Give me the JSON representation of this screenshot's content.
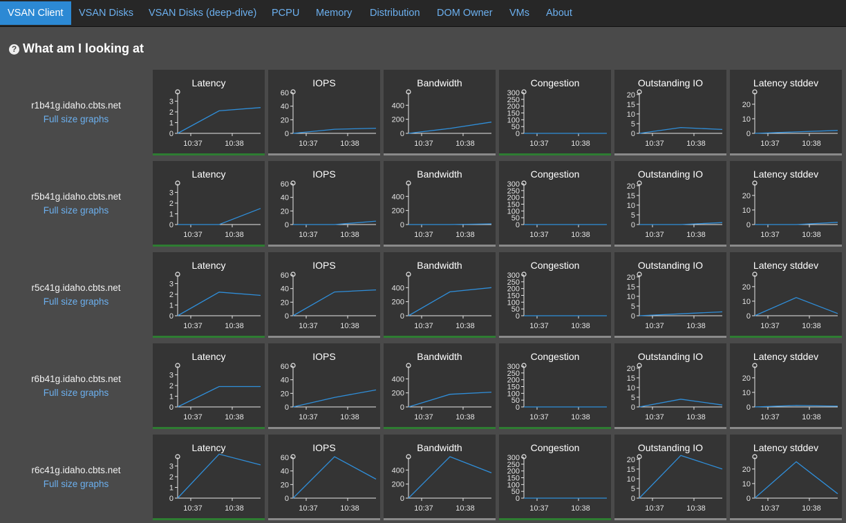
{
  "nav": {
    "tabs": [
      {
        "label": "VSAN Client",
        "active": true
      },
      {
        "label": "VSAN Disks"
      },
      {
        "label": "VSAN Disks (deep-dive)"
      },
      {
        "label": "PCPU"
      },
      {
        "label": "Memory"
      },
      {
        "label": "Distribution"
      },
      {
        "label": "DOM Owner"
      },
      {
        "label": "VMs"
      },
      {
        "label": "About"
      }
    ]
  },
  "page": {
    "help_glyph": "?",
    "title": "What am I looking at",
    "full_size_link": "Full size graphs"
  },
  "colors": {
    "line": "#2f8fdb",
    "bar_green": "#2e7d32",
    "bar_gray": "#8a8a8a"
  },
  "x_ticks": [
    "10:37",
    "10:38"
  ],
  "chart_data": {
    "type": "line",
    "x": [
      0,
      1,
      2
    ],
    "metrics": [
      {
        "name": "Latency",
        "yticks": [
          0,
          1,
          2,
          3
        ],
        "ylim": [
          0,
          3.8
        ]
      },
      {
        "name": "IOPS",
        "yticks": [
          0,
          20,
          40,
          60
        ],
        "ylim": [
          0,
          60
        ]
      },
      {
        "name": "Bandwidth",
        "yticks": [
          0,
          200,
          400
        ],
        "ylim": [
          0,
          580
        ]
      },
      {
        "name": "Congestion",
        "yticks": [
          0,
          50,
          100,
          150,
          200,
          250,
          300
        ],
        "ylim": [
          0,
          300
        ]
      },
      {
        "name": "Outstanding IO",
        "yticks": [
          0,
          5,
          10,
          15,
          20
        ],
        "ylim": [
          0,
          21
        ]
      },
      {
        "name": "Latency stddev",
        "yticks": [
          0,
          10,
          20
        ],
        "ylim": [
          0,
          28
        ]
      }
    ],
    "hosts": [
      {
        "name": "r1b41g.idaho.cbts.net",
        "status": [
          "green",
          "gray",
          "gray",
          "green",
          "gray",
          "gray"
        ],
        "series": [
          [
            0,
            2.1,
            2.4
          ],
          [
            0,
            6,
            7.5
          ],
          [
            0,
            70,
            160
          ],
          [
            0,
            0,
            0
          ],
          [
            0,
            3,
            2
          ],
          [
            0,
            1,
            2
          ]
        ]
      },
      {
        "name": "r5b41g.idaho.cbts.net",
        "status": [
          "green",
          "gray",
          "gray",
          "gray",
          "gray",
          "gray"
        ],
        "series": [
          [
            0,
            0,
            1.5
          ],
          [
            0,
            0,
            5
          ],
          [
            0,
            0,
            10
          ],
          [
            0,
            0,
            0
          ],
          [
            0,
            0,
            1
          ],
          [
            0,
            0,
            1.5
          ]
        ]
      },
      {
        "name": "r5c41g.idaho.cbts.net",
        "status": [
          "green",
          "gray",
          "green",
          "gray",
          "gray",
          "green"
        ],
        "series": [
          [
            0,
            2.2,
            1.9
          ],
          [
            0,
            35,
            38
          ],
          [
            0,
            340,
            400
          ],
          [
            0,
            0,
            0
          ],
          [
            0,
            1,
            2
          ],
          [
            0,
            12.5,
            1.5
          ]
        ]
      },
      {
        "name": "r6b41g.idaho.cbts.net",
        "status": [
          "green",
          "gray",
          "green",
          "green",
          "gray",
          "gray"
        ],
        "series": [
          [
            0,
            1.9,
            1.9
          ],
          [
            0,
            14,
            25
          ],
          [
            0,
            180,
            210
          ],
          [
            0,
            0,
            0
          ],
          [
            0,
            4,
            1
          ],
          [
            0,
            1,
            0.5
          ]
        ]
      },
      {
        "name": "r6c41g.idaho.cbts.net",
        "status": [
          "green",
          "gray",
          "gray",
          "green",
          "gray",
          "gray"
        ],
        "series": [
          [
            0,
            4.1,
            3.1
          ],
          [
            0,
            61,
            28
          ],
          [
            0,
            590,
            360
          ],
          [
            0,
            0,
            0
          ],
          [
            0,
            22,
            15
          ],
          [
            0,
            25,
            3
          ]
        ]
      }
    ]
  }
}
